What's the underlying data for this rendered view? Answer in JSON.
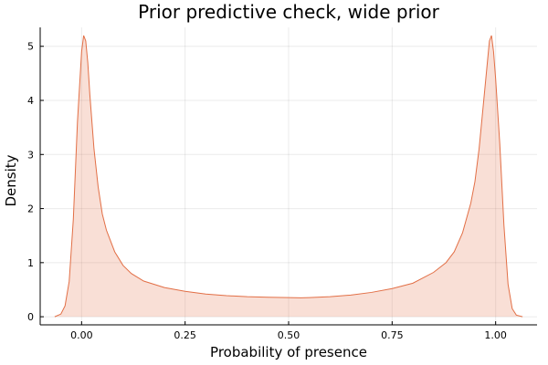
{
  "chart_data": {
    "type": "area",
    "title": "Prior predictive check, wide prior",
    "xlabel": "Probability of presence",
    "ylabel": "Density",
    "xlim": [
      -0.1,
      1.1
    ],
    "ylim": [
      -0.15,
      5.35
    ],
    "x_ticks": [
      0.0,
      0.25,
      0.5,
      0.75,
      1.0
    ],
    "x_tick_labels": [
      "0.00",
      "0.25",
      "0.50",
      "0.75",
      "1.00"
    ],
    "y_ticks": [
      0,
      1,
      2,
      3,
      4,
      5
    ],
    "y_tick_labels": [
      "0",
      "1",
      "2",
      "3",
      "4",
      "5"
    ],
    "grid": true,
    "legend": "none",
    "series": [
      {
        "color": "#e26f46",
        "fill_color": "#e26f46",
        "fill_opacity": 0.22,
        "x": [
          -0.065,
          -0.05,
          -0.04,
          -0.03,
          -0.02,
          -0.01,
          0.0,
          0.005,
          0.01,
          0.015,
          0.02,
          0.03,
          0.04,
          0.05,
          0.06,
          0.08,
          0.1,
          0.12,
          0.15,
          0.2,
          0.25,
          0.3,
          0.35,
          0.4,
          0.45,
          0.5,
          0.53,
          0.55,
          0.6,
          0.65,
          0.7,
          0.75,
          0.8,
          0.85,
          0.88,
          0.9,
          0.92,
          0.94,
          0.95,
          0.96,
          0.97,
          0.98,
          0.985,
          0.99,
          0.995,
          1.0,
          1.01,
          1.02,
          1.03,
          1.04,
          1.05,
          1.065
        ],
        "y": [
          0.0,
          0.05,
          0.2,
          0.65,
          1.8,
          3.6,
          4.9,
          5.2,
          5.1,
          4.7,
          4.1,
          3.1,
          2.4,
          1.9,
          1.6,
          1.2,
          0.95,
          0.8,
          0.66,
          0.54,
          0.47,
          0.42,
          0.39,
          0.37,
          0.36,
          0.355,
          0.35,
          0.355,
          0.37,
          0.4,
          0.45,
          0.52,
          0.62,
          0.82,
          1.0,
          1.2,
          1.55,
          2.1,
          2.5,
          3.1,
          3.9,
          4.7,
          5.1,
          5.2,
          4.9,
          4.4,
          3.2,
          1.7,
          0.6,
          0.15,
          0.03,
          0.0
        ]
      }
    ]
  }
}
